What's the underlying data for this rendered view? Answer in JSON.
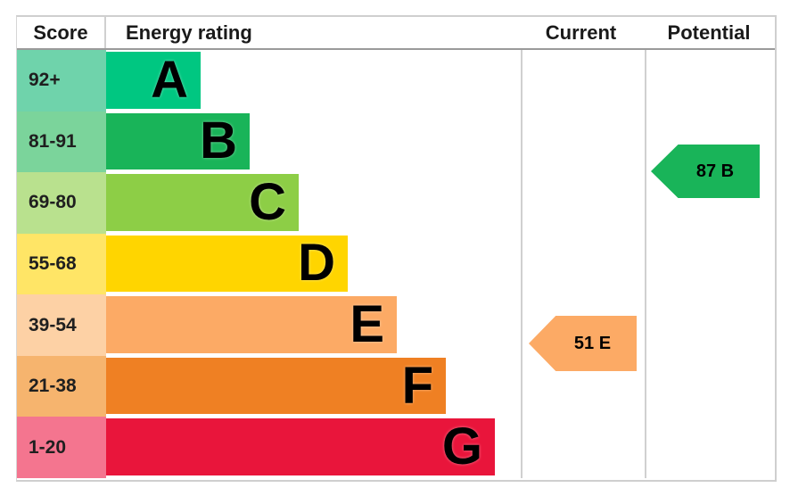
{
  "header": {
    "score": "Score",
    "energy_rating": "Energy rating",
    "current": "Current",
    "potential": "Potential"
  },
  "chart_data": {
    "type": "bar",
    "description": "EPC energy-efficiency rating chart with staircase bars A-G and current/potential rating arrows",
    "columns": [
      "Score",
      "Energy rating",
      "Current",
      "Potential"
    ],
    "bands": [
      {
        "letter": "A",
        "score_range": "92+",
        "color": "#00c781",
        "tint": "#6fd3ab"
      },
      {
        "letter": "B",
        "score_range": "81-91",
        "color": "#19b459",
        "tint": "#7bd49b"
      },
      {
        "letter": "C",
        "score_range": "69-80",
        "color": "#8dce46",
        "tint": "#b9e18e"
      },
      {
        "letter": "D",
        "score_range": "55-68",
        "color": "#ffd500",
        "tint": "#ffe566"
      },
      {
        "letter": "E",
        "score_range": "39-54",
        "color": "#fcaa65",
        "tint": "#fdd1a5"
      },
      {
        "letter": "F",
        "score_range": "21-38",
        "color": "#ef8023",
        "tint": "#f6b46e"
      },
      {
        "letter": "G",
        "score_range": "1-20",
        "color": "#e9153b",
        "tint": "#f4758f"
      }
    ],
    "current": {
      "score": 51,
      "band": "E",
      "label": "51 E",
      "color": "#fcaa65",
      "row_index": 4
    },
    "potential": {
      "score": 87,
      "band": "B",
      "label": "87 B",
      "color": "#19b459",
      "row_index": 1
    }
  }
}
